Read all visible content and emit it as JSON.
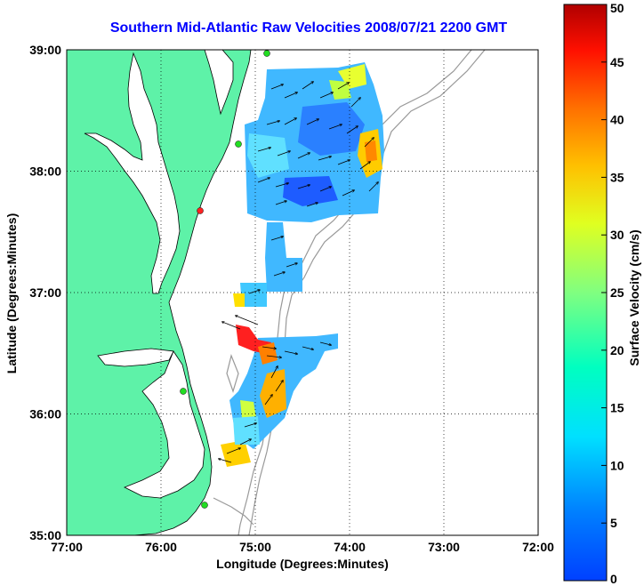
{
  "title": "Southern Mid-Atlantic Raw Velocities 2008/07/21 2200 GMT",
  "axes": {
    "xlabel": "Longitude (Degrees:Minutes)",
    "ylabel": "Latitude (Degrees:Minutes)",
    "xticks": [
      "77:00",
      "76:00",
      "75:00",
      "74:00",
      "73:00",
      "72:00"
    ],
    "yticks": [
      "39:00",
      "38:00",
      "37:00",
      "36:00",
      "35:00"
    ],
    "xlim": [
      -77,
      -72
    ],
    "ylim": [
      35,
      39
    ],
    "grid": "dotted"
  },
  "colorbar": {
    "label": "Surface Velocity (cm/s)",
    "ticks": [
      "0",
      "5",
      "10",
      "15",
      "20",
      "25",
      "30",
      "35",
      "40",
      "45",
      "50"
    ],
    "range": [
      0,
      50
    ],
    "colormap": "jet"
  },
  "colors": {
    "land": "#5ef2a8",
    "water": "#ffffff",
    "title": "#0000ff",
    "coast": "#000000",
    "bathymetry": "#999999",
    "station": "#22dd22",
    "station_alert": "#ff2222"
  }
}
